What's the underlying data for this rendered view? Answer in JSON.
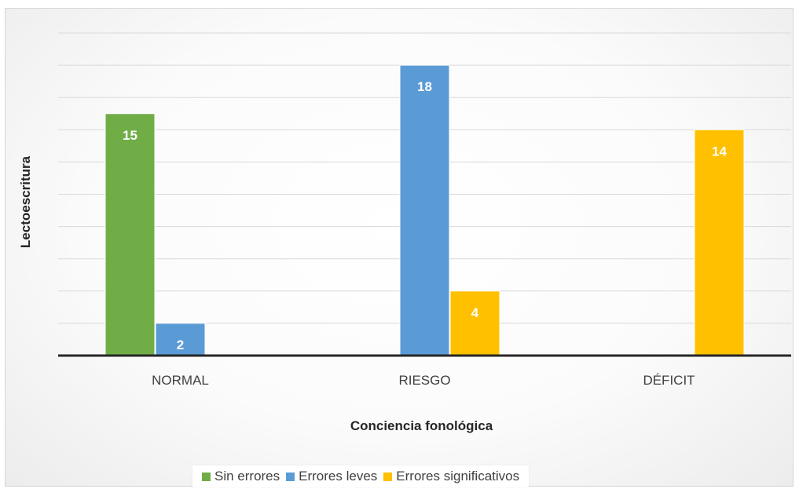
{
  "chart_data": {
    "type": "bar",
    "title": "",
    "xlabel": "Conciencia fonológica",
    "ylabel": "Lectoescritura",
    "categories": [
      "NORMAL",
      "RIESGO",
      "DÉFICIT"
    ],
    "series": [
      {
        "name": "Sin errores",
        "color": "#70AD47",
        "values": [
          15,
          null,
          null
        ]
      },
      {
        "name": "Errores leves",
        "color": "#5B9BD5",
        "values": [
          2,
          18,
          null
        ]
      },
      {
        "name": "Errores significativos",
        "color": "#FFC000",
        "values": [
          null,
          4,
          14
        ]
      }
    ],
    "ylim": [
      0,
      20
    ],
    "grid": true,
    "legend": "bottom",
    "data_labels": true
  }
}
